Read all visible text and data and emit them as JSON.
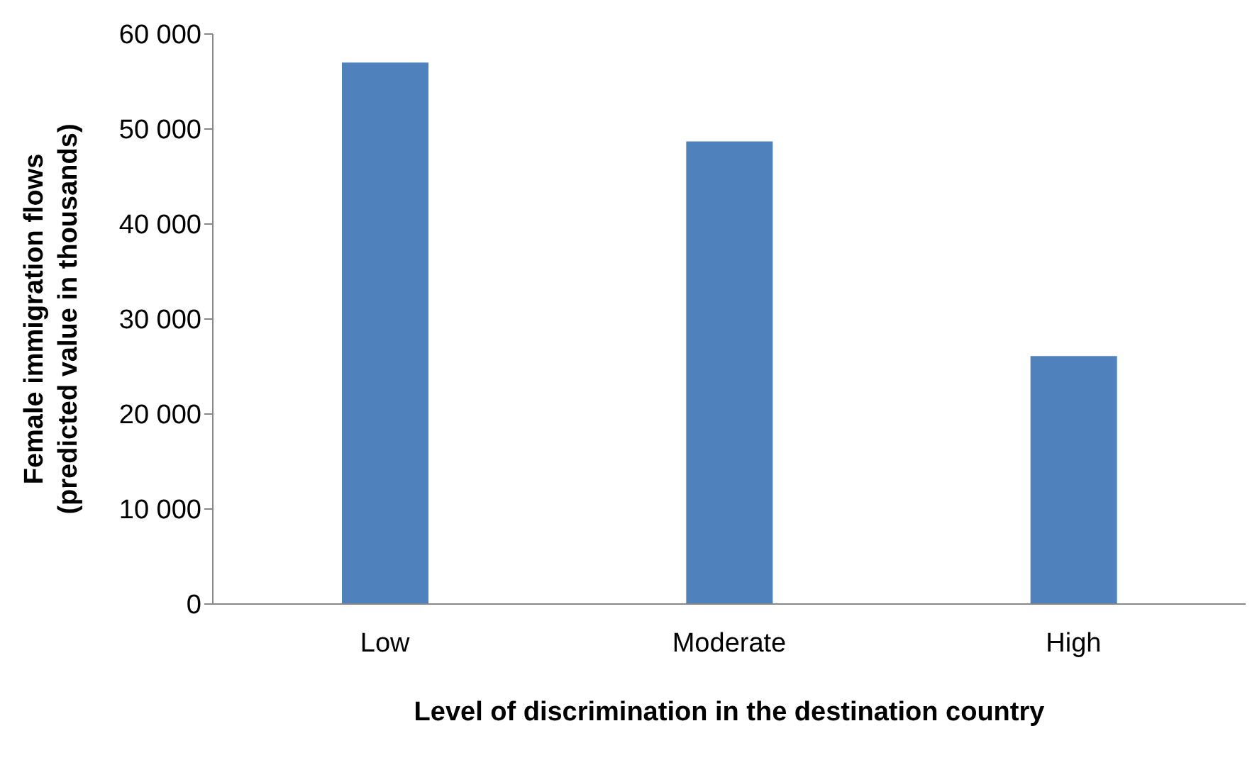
{
  "chart_data": {
    "type": "bar",
    "xlabel": "Level of discrimination in the destination country",
    "ylabel": "Female immigration  flows\n(predicted value in  thousands)",
    "categories": [
      "Low",
      "Moderate",
      "High"
    ],
    "values": [
      57000,
      48700,
      26100
    ],
    "color": "#4f81bd",
    "ylim": [
      0,
      60000
    ],
    "yticks": [
      {
        "value": 0,
        "label": "0"
      },
      {
        "value": 10000,
        "label": "10 000"
      },
      {
        "value": 20000,
        "label": "20 000"
      },
      {
        "value": 30000,
        "label": "30 000"
      },
      {
        "value": 40000,
        "label": "40 000"
      },
      {
        "value": 50000,
        "label": "50 000"
      },
      {
        "value": 60000,
        "label": "60 000"
      }
    ],
    "grid": false,
    "legend": false
  }
}
